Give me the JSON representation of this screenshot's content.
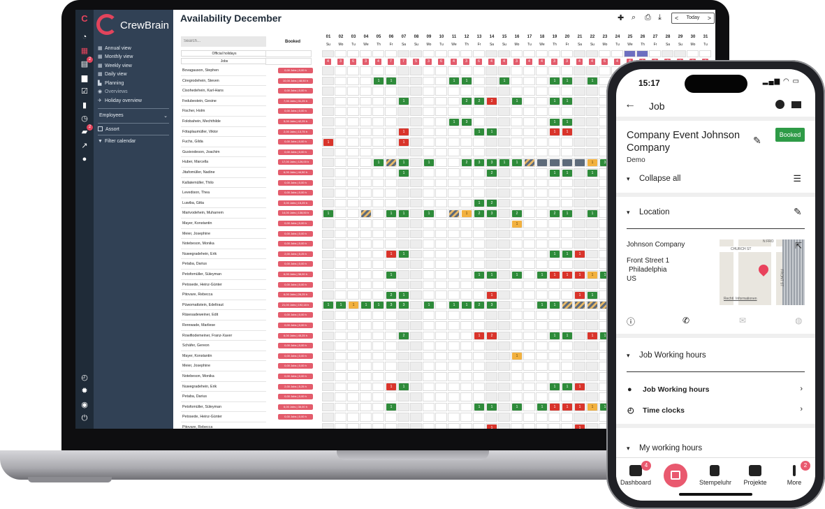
{
  "app": {
    "brand": "CrewBrain",
    "page_title": "Availability December",
    "nav": [
      {
        "label": "Annual view"
      },
      {
        "label": "Monthly view"
      },
      {
        "label": "Weekly view"
      },
      {
        "label": "Daily view"
      },
      {
        "label": "Planning"
      },
      {
        "label": "Overviews"
      },
      {
        "label": "Holiday overview"
      }
    ],
    "employees_label": "Employees",
    "assort_label": "Assort",
    "filter_label": "Filter calendar",
    "rail_badges": [
      "2",
      "2"
    ],
    "toolbar": {
      "today": "Today",
      "prev": "<",
      "next": ">"
    },
    "search_placeholder": "Search...",
    "booked_header": "Booked",
    "row_official_holidays": "Official holidays",
    "row_jobs": "Jobs",
    "days": [
      "01",
      "02",
      "03",
      "04",
      "05",
      "06",
      "07",
      "08",
      "09",
      "10",
      "11",
      "12",
      "13",
      "14",
      "15",
      "16",
      "17",
      "18",
      "19",
      "20",
      "21",
      "22",
      "23",
      "24",
      "25",
      "26",
      "27",
      "28",
      "29",
      "30",
      "31"
    ],
    "weekdays": [
      "Su",
      "Mo",
      "Tu",
      "We",
      "Th",
      "Fr",
      "Sa",
      "Su",
      "Mo",
      "Tu",
      "We",
      "Th",
      "Fr",
      "Sa",
      "Su",
      "Mo",
      "Tu",
      "We",
      "Th",
      "Fr",
      "Sa",
      "Su",
      "Mo",
      "Tu",
      "We",
      "Th",
      "Fr",
      "Sa",
      "Su",
      "Mo",
      "Tu"
    ],
    "jobs_counts": [
      "4",
      "3",
      "6",
      "3",
      "4",
      "7",
      "7",
      "5",
      "3",
      "6",
      "4",
      "3",
      "6",
      "4",
      "4",
      "3",
      "4",
      "4",
      "3",
      "3",
      "4",
      "4",
      "6",
      "4",
      "4",
      "4",
      "4",
      "4",
      "4",
      "4",
      "4"
    ],
    "employees": [
      {
        "name": "Bovagauson, Stephen",
        "booked": "0,00 Jobs | 0,00 h"
      },
      {
        "name": "Ciregrodehein, Steven",
        "booked": "10,00 Jobs | 48,50 h"
      },
      {
        "name": "Cisohedehein, Karl-Hans",
        "booked": "0,00 Jobs | 0,00 h"
      },
      {
        "name": "Fedubestein, Gesine",
        "booked": "7,00 Jobs | 31,25 h"
      },
      {
        "name": "Fischer, Holm",
        "booked": "0,00 Jobs | 0,00 h"
      },
      {
        "name": "Folobahein, Mechthilde",
        "booked": "5,00 Jobs | 42,25 h"
      },
      {
        "name": "Fötaplaumüller, Viktor",
        "booked": "2,00 Jobs | 13,75 h"
      },
      {
        "name": "Fuchs, Gilda",
        "booked": "0,00 Jobs | 0,00 h"
      },
      {
        "name": "Gusivodeson, Joachim",
        "booked": "0,00 Jobs | 0,00 h"
      },
      {
        "name": "Huber, Marcella",
        "booked": "17,00 Jobs | 126,00 h"
      },
      {
        "name": "Jitafomüller, Nadine",
        "booked": "6,00 Jobs | 44,50 h"
      },
      {
        "name": "Kallatemüller, Thilo",
        "booked": "0,00 Jobs | 0,00 h"
      },
      {
        "name": "Levedison, Thea",
        "booked": "0,00 Jobs | 0,00 h"
      },
      {
        "name": "Luwiba, Gitta",
        "booked": "3,00 Jobs | 15,25 h"
      },
      {
        "name": "Marivodehein, Muharrem",
        "booked": "14,00 Jobs | 138,50 h"
      },
      {
        "name": "Mayer, Konstantin",
        "booked": "0,00 Jobs | 0,00 h"
      },
      {
        "name": "Meier, Josephine",
        "booked": "0,00 Jobs | 0,00 h"
      },
      {
        "name": "Notebeson, Monika",
        "booked": "0,00 Jobs | 0,00 h"
      },
      {
        "name": "Nuwegradehein, Erik",
        "booked": "2,00 Jobs | 5,25 h"
      },
      {
        "name": "Petaba, Darius",
        "booked": "0,00 Jobs | 0,00 h"
      },
      {
        "name": "Petofomüller, Süleyman",
        "booked": "6,00 Jobs | 36,00 h"
      },
      {
        "name": "Petosede, Heinz-Günter",
        "booked": "0,00 Jobs | 0,00 h"
      },
      {
        "name": "Pitovare, Rebecca",
        "booked": "6,00 Jobs | 26,25 h"
      },
      {
        "name": "Püwomattstein, Edeltraut",
        "booked": "21,00 Jobs | 192,18 h"
      },
      {
        "name": "Räsesadeweiner, Edit",
        "booked": "0,00 Jobs | 0,00 h"
      },
      {
        "name": "Rerewade, Marliese",
        "booked": "0,00 Jobs | 0,00 h"
      },
      {
        "name": "Rowifiodemeiner, Franz-Xaver",
        "booked": "6,00 Jobs | 45,25 h"
      },
      {
        "name": "Schäfer, Gereon",
        "booked": "0,00 Jobs | 0,00 h"
      },
      {
        "name": "Mayer, Konstantin",
        "booked": "0,00 Jobs | 0,00 h"
      },
      {
        "name": "Meier, Josephine",
        "booked": "0,00 Jobs | 0,00 h"
      },
      {
        "name": "Notebeson, Monika",
        "booked": "0,00 Jobs | 0,00 h"
      },
      {
        "name": "Nuwegradehein, Erik",
        "booked": "2,00 Jobs | 5,25 h"
      },
      {
        "name": "Petaba, Darius",
        "booked": "0,00 Jobs | 0,00 h"
      },
      {
        "name": "Petofomüller, Süleyman",
        "booked": "6,00 Jobs | 36,00 h"
      },
      {
        "name": "Petosede, Heinz-Günter",
        "booked": "0,00 Jobs | 0,00 h"
      },
      {
        "name": "Pitovare, Rebecca",
        "booked": ""
      }
    ],
    "marks": [
      [
        1,
        [
          [
            4,
            "g",
            "1"
          ],
          [
            5,
            "g",
            "1"
          ],
          [
            10,
            "g",
            "1"
          ],
          [
            11,
            "g",
            "1"
          ],
          [
            14,
            "g",
            "1"
          ],
          [
            18,
            "g",
            "1"
          ],
          [
            19,
            "g",
            "1"
          ],
          [
            21,
            "g",
            "1"
          ]
        ]
      ],
      [
        3,
        [
          [
            6,
            "g",
            "1"
          ],
          [
            11,
            "g",
            "2"
          ],
          [
            12,
            "g",
            "2"
          ],
          [
            13,
            "r",
            "2"
          ],
          [
            15,
            "g",
            "1"
          ],
          [
            18,
            "g",
            "1"
          ],
          [
            19,
            "g",
            "1"
          ]
        ]
      ],
      [
        5,
        [
          [
            10,
            "g",
            "1"
          ],
          [
            11,
            "g",
            "3"
          ],
          [
            18,
            "g",
            "1"
          ],
          [
            19,
            "g",
            "1"
          ]
        ]
      ],
      [
        6,
        [
          [
            6,
            "r",
            "1"
          ],
          [
            12,
            "g",
            "1"
          ],
          [
            13,
            "g",
            "1"
          ],
          [
            18,
            "r",
            "1"
          ],
          [
            19,
            "r",
            "1"
          ]
        ]
      ],
      [
        7,
        [
          [
            0,
            "r",
            "1"
          ],
          [
            6,
            "r",
            "1"
          ]
        ]
      ],
      [
        9,
        [
          [
            4,
            "g",
            "1"
          ],
          [
            5,
            "st",
            ""
          ],
          [
            6,
            "g",
            "1"
          ],
          [
            8,
            "g",
            "1"
          ],
          [
            11,
            "g",
            "2"
          ],
          [
            12,
            "g",
            "3"
          ],
          [
            13,
            "g",
            "3"
          ],
          [
            14,
            "g",
            "1"
          ],
          [
            15,
            "g",
            "1"
          ],
          [
            16,
            "st",
            ""
          ],
          [
            17,
            "gy",
            ""
          ],
          [
            18,
            "gy",
            ""
          ],
          [
            19,
            "gy",
            ""
          ],
          [
            20,
            "gy",
            ""
          ],
          [
            21,
            "o",
            "1"
          ],
          [
            22,
            "g",
            "3"
          ]
        ]
      ],
      [
        10,
        [
          [
            6,
            "g",
            "1"
          ],
          [
            13,
            "g",
            "2"
          ],
          [
            18,
            "g",
            "1"
          ],
          [
            19,
            "g",
            "1"
          ],
          [
            21,
            "g",
            "1"
          ]
        ]
      ],
      [
        13,
        [
          [
            12,
            "g",
            "1"
          ],
          [
            13,
            "g",
            "2"
          ]
        ]
      ],
      [
        14,
        [
          [
            0,
            "g",
            "1"
          ],
          [
            3,
            "st",
            ""
          ],
          [
            5,
            "g",
            "1"
          ],
          [
            6,
            "g",
            "1"
          ],
          [
            8,
            "g",
            "1"
          ],
          [
            10,
            "st",
            ""
          ],
          [
            11,
            "o",
            "1"
          ],
          [
            12,
            "g",
            "2"
          ],
          [
            13,
            "g",
            "3"
          ],
          [
            15,
            "g",
            "2"
          ],
          [
            18,
            "g",
            "2"
          ],
          [
            19,
            "g",
            "1"
          ],
          [
            21,
            "g",
            "1"
          ]
        ]
      ],
      [
        15,
        [
          [
            15,
            "o",
            "1"
          ]
        ]
      ],
      [
        18,
        [
          [
            5,
            "r",
            "1"
          ],
          [
            6,
            "g",
            "1"
          ],
          [
            18,
            "g",
            "1"
          ],
          [
            19,
            "g",
            "1"
          ],
          [
            20,
            "r",
            "1"
          ]
        ]
      ],
      [
        20,
        [
          [
            5,
            "g",
            "1"
          ],
          [
            12,
            "g",
            "1"
          ],
          [
            13,
            "g",
            "1"
          ],
          [
            15,
            "g",
            "1"
          ],
          [
            17,
            "g",
            "1"
          ],
          [
            18,
            "r",
            "1"
          ],
          [
            19,
            "r",
            "1"
          ],
          [
            20,
            "r",
            "1"
          ],
          [
            21,
            "o",
            "1"
          ],
          [
            22,
            "g",
            "1"
          ]
        ]
      ],
      [
        22,
        [
          [
            5,
            "g",
            "2"
          ],
          [
            6,
            "g",
            "1"
          ],
          [
            13,
            "r",
            "1"
          ],
          [
            20,
            "r",
            "1"
          ],
          [
            21,
            "g",
            "1"
          ]
        ]
      ],
      [
        23,
        [
          [
            0,
            "g",
            "1"
          ],
          [
            1,
            "g",
            "1"
          ],
          [
            2,
            "o",
            "1"
          ],
          [
            3,
            "g",
            "1"
          ],
          [
            4,
            "g",
            "1"
          ],
          [
            5,
            "g",
            "3"
          ],
          [
            6,
            "g",
            "3"
          ],
          [
            8,
            "g",
            "1"
          ],
          [
            10,
            "g",
            "1"
          ],
          [
            11,
            "g",
            "1"
          ],
          [
            12,
            "g",
            "2"
          ],
          [
            13,
            "g",
            "3"
          ],
          [
            17,
            "g",
            "1"
          ],
          [
            18,
            "g",
            "1"
          ],
          [
            19,
            "st",
            ""
          ],
          [
            20,
            "st",
            ""
          ],
          [
            21,
            "st",
            ""
          ],
          [
            22,
            "st",
            ""
          ]
        ]
      ],
      [
        26,
        [
          [
            6,
            "g",
            "2"
          ],
          [
            12,
            "r",
            "1"
          ],
          [
            13,
            "r",
            "2"
          ],
          [
            18,
            "g",
            "1"
          ],
          [
            19,
            "g",
            "1"
          ],
          [
            21,
            "r",
            "1"
          ],
          [
            22,
            "g",
            "1"
          ]
        ]
      ],
      [
        28,
        [
          [
            15,
            "o",
            "1"
          ]
        ]
      ],
      [
        31,
        [
          [
            5,
            "r",
            "1"
          ],
          [
            6,
            "g",
            "1"
          ],
          [
            18,
            "g",
            "1"
          ],
          [
            19,
            "g",
            "1"
          ],
          [
            20,
            "r",
            "1"
          ]
        ]
      ],
      [
        33,
        [
          [
            5,
            "g",
            "1"
          ],
          [
            12,
            "g",
            "1"
          ],
          [
            13,
            "g",
            "1"
          ],
          [
            15,
            "g",
            "1"
          ],
          [
            17,
            "g",
            "1"
          ],
          [
            18,
            "r",
            "1"
          ],
          [
            19,
            "r",
            "1"
          ],
          [
            20,
            "r",
            "1"
          ],
          [
            21,
            "o",
            "1"
          ],
          [
            22,
            "g",
            "1"
          ]
        ]
      ],
      [
        35,
        [
          [
            13,
            "r",
            "1"
          ],
          [
            20,
            "r",
            "1"
          ]
        ]
      ]
    ]
  },
  "phone": {
    "time": "15:17",
    "header": "Job",
    "job_title": "Company Event Johnson Company",
    "status": "Booked",
    "subtitle": "Demo",
    "collapse_all": "Collapse all",
    "location_label": "Location",
    "address_name": "Johnson Company",
    "address_street": "Front Street 1",
    "address_city": "Philadelphia",
    "address_country": "US",
    "map_street_1": "CHURCH ST",
    "map_street_2": "N FRO",
    "map_street_3": "FRONT ST",
    "map_legal": "Rechtl. Informationen",
    "job_working_hours_section": "Job Working hours",
    "job_working_hours_item": "Job Working hours",
    "time_clocks_item": "Time clocks",
    "my_working_hours": "My working hours",
    "tabs": [
      {
        "label": "Dashboard",
        "badge": "4"
      },
      {
        "label": ""
      },
      {
        "label": "Stempeluhr"
      },
      {
        "label": "Projekte"
      },
      {
        "label": "More",
        "badge": "2"
      }
    ]
  }
}
